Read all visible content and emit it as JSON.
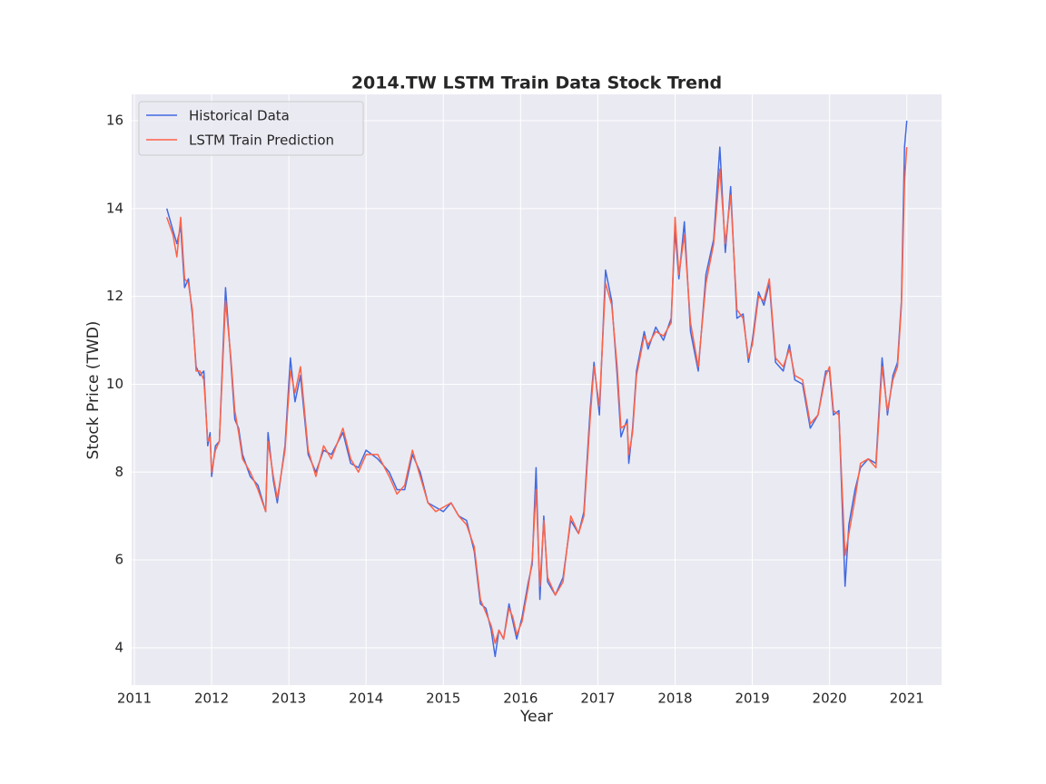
{
  "chart_data": {
    "type": "line",
    "title": "2014.TW  LSTM Train Data Stock Trend",
    "xlabel": "Year",
    "ylabel": "Stock Price (TWD)",
    "x": [
      2011.42,
      2011.5,
      2011.55,
      2011.6,
      2011.65,
      2011.7,
      2011.75,
      2011.8,
      2011.85,
      2011.9,
      2011.95,
      2011.98,
      2012.0,
      2012.05,
      2012.1,
      2012.15,
      2012.18,
      2012.25,
      2012.3,
      2012.35,
      2012.4,
      2012.5,
      2012.6,
      2012.7,
      2012.73,
      2012.8,
      2012.85,
      2012.95,
      2013.02,
      2013.08,
      2013.15,
      2013.25,
      2013.35,
      2013.45,
      2013.55,
      2013.7,
      2013.8,
      2013.9,
      2014.0,
      2014.15,
      2014.3,
      2014.4,
      2014.5,
      2014.6,
      2014.7,
      2014.8,
      2014.9,
      2015.0,
      2015.1,
      2015.2,
      2015.3,
      2015.4,
      2015.48,
      2015.55,
      2015.62,
      2015.67,
      2015.72,
      2015.78,
      2015.85,
      2015.9,
      2015.95,
      2016.02,
      2016.1,
      2016.15,
      2016.2,
      2016.25,
      2016.3,
      2016.35,
      2016.45,
      2016.55,
      2016.65,
      2016.75,
      2016.82,
      2016.9,
      2016.95,
      2017.02,
      2017.1,
      2017.18,
      2017.25,
      2017.3,
      2017.38,
      2017.4,
      2017.45,
      2017.5,
      2017.6,
      2017.65,
      2017.75,
      2017.85,
      2017.95,
      2018.0,
      2018.05,
      2018.12,
      2018.2,
      2018.3,
      2018.4,
      2018.5,
      2018.58,
      2018.65,
      2018.72,
      2018.8,
      2018.88,
      2018.95,
      2019.0,
      2019.08,
      2019.15,
      2019.22,
      2019.3,
      2019.4,
      2019.48,
      2019.55,
      2019.65,
      2019.75,
      2019.85,
      2019.95,
      2020.0,
      2020.05,
      2020.12,
      2020.2,
      2020.25,
      2020.33,
      2020.4,
      2020.5,
      2020.6,
      2020.68,
      2020.75,
      2020.82,
      2020.88,
      2020.93,
      2020.97,
      2021.0
    ],
    "series": [
      {
        "name": "Historical Data",
        "color": "#4169e1",
        "values": [
          14.0,
          13.5,
          13.2,
          13.6,
          12.2,
          12.4,
          11.6,
          10.4,
          10.2,
          10.3,
          8.6,
          8.9,
          7.9,
          8.6,
          8.7,
          10.9,
          12.2,
          10.5,
          9.2,
          9.0,
          8.4,
          7.9,
          7.7,
          7.1,
          8.9,
          7.8,
          7.3,
          8.6,
          10.6,
          9.6,
          10.2,
          8.4,
          8.0,
          8.5,
          8.4,
          8.9,
          8.2,
          8.1,
          8.5,
          8.3,
          8.0,
          7.6,
          7.6,
          8.4,
          8.0,
          7.3,
          7.2,
          7.1,
          7.3,
          7.0,
          6.9,
          6.2,
          5.0,
          4.9,
          4.4,
          3.8,
          4.4,
          4.2,
          5.0,
          4.6,
          4.2,
          4.7,
          5.5,
          5.9,
          8.1,
          5.1,
          7.0,
          5.5,
          5.2,
          5.6,
          6.9,
          6.6,
          7.1,
          9.4,
          10.5,
          9.3,
          12.6,
          11.9,
          10.2,
          8.8,
          9.2,
          8.2,
          9.0,
          10.3,
          11.2,
          10.8,
          11.3,
          11.0,
          11.5,
          13.5,
          12.4,
          13.7,
          11.2,
          10.3,
          12.5,
          13.3,
          15.4,
          13.0,
          14.5,
          11.5,
          11.6,
          10.5,
          11.0,
          12.1,
          11.8,
          12.3,
          10.5,
          10.3,
          10.9,
          10.1,
          10.0,
          9.0,
          9.3,
          10.3,
          10.3,
          9.3,
          9.4,
          5.4,
          6.8,
          7.6,
          8.1,
          8.3,
          8.2,
          10.6,
          9.3,
          10.2,
          10.5,
          11.9,
          15.4,
          16.0
        ]
      },
      {
        "name": "LSTM Train Prediction",
        "color": "#ff6347",
        "values": [
          13.8,
          13.4,
          12.9,
          13.8,
          12.4,
          12.3,
          11.7,
          10.3,
          10.3,
          10.1,
          8.7,
          8.8,
          8.0,
          8.5,
          8.7,
          10.7,
          11.9,
          10.6,
          9.4,
          8.9,
          8.3,
          8.0,
          7.6,
          7.1,
          8.7,
          7.9,
          7.4,
          8.5,
          10.3,
          9.8,
          10.4,
          8.5,
          7.9,
          8.6,
          8.3,
          9.0,
          8.3,
          8.0,
          8.4,
          8.4,
          7.9,
          7.5,
          7.7,
          8.5,
          7.9,
          7.3,
          7.1,
          7.2,
          7.3,
          7.0,
          6.8,
          6.3,
          5.1,
          4.8,
          4.5,
          4.1,
          4.4,
          4.2,
          4.9,
          4.7,
          4.3,
          4.6,
          5.4,
          6.0,
          7.6,
          5.4,
          6.9,
          5.6,
          5.2,
          5.5,
          7.0,
          6.6,
          7.0,
          9.2,
          10.4,
          9.5,
          12.3,
          11.8,
          10.4,
          9.0,
          9.1,
          8.4,
          8.9,
          10.2,
          11.1,
          10.9,
          11.2,
          11.1,
          11.4,
          13.8,
          12.5,
          13.4,
          11.4,
          10.4,
          12.3,
          13.2,
          14.9,
          13.2,
          14.3,
          11.7,
          11.5,
          10.6,
          10.9,
          12.0,
          11.9,
          12.4,
          10.6,
          10.4,
          10.8,
          10.2,
          10.1,
          9.1,
          9.3,
          10.2,
          10.4,
          9.4,
          9.3,
          6.1,
          6.6,
          7.4,
          8.2,
          8.3,
          8.1,
          10.4,
          9.4,
          10.1,
          10.4,
          11.8,
          14.6,
          15.4
        ]
      }
    ],
    "xlim": [
      2010.965,
      2021.45
    ],
    "xticks": [
      2011,
      2012,
      2013,
      2014,
      2015,
      2016,
      2017,
      2018,
      2019,
      2020,
      2021
    ],
    "ylim": [
      3.15,
      16.6
    ],
    "yticks": [
      4,
      6,
      8,
      10,
      12,
      14,
      16
    ],
    "grid": true,
    "legend": "upper left"
  }
}
